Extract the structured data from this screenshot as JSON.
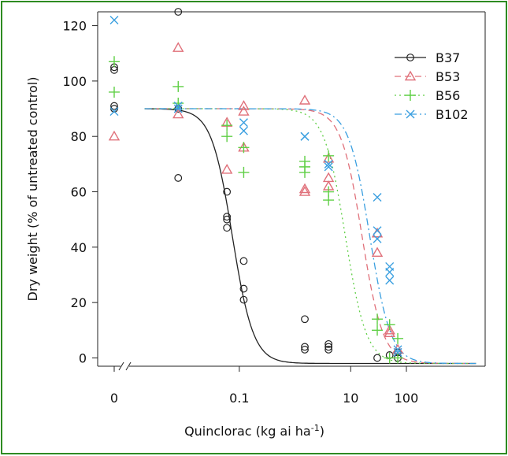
{
  "chart_data": {
    "type": "scatter",
    "xlabel": "Quinclorac (kg ai ha",
    "xlabel_sup": "-1",
    "xlabel_end": ")",
    "ylabel": "Dry weight (% of untreated control)",
    "xscale": "log",
    "x_ticks": [
      {
        "label": "0",
        "value": 0
      },
      {
        "label": "0.1",
        "value": 0.1
      },
      {
        "label": "10",
        "value": 10
      },
      {
        "label": "100",
        "value": 100
      }
    ],
    "xlim": [
      0.0012,
      2000
    ],
    "ylim": [
      -3,
      125
    ],
    "y_ticks": [
      0,
      20,
      40,
      60,
      80,
      100,
      120
    ],
    "axis_break": true,
    "legend_position": "top-right",
    "series": [
      {
        "name": "B37",
        "marker": "circle",
        "line": "solid",
        "color": "#222222",
        "curve": {
          "upper": 90,
          "lower": -2,
          "ed50": 0.075,
          "slope": 2.3
        },
        "points": [
          [
            0,
            104
          ],
          [
            0,
            105
          ],
          [
            0,
            90
          ],
          [
            0,
            91
          ],
          [
            0.008,
            125
          ],
          [
            0.008,
            65
          ],
          [
            0.008,
            90
          ],
          [
            0.06,
            60
          ],
          [
            0.06,
            50
          ],
          [
            0.06,
            51
          ],
          [
            0.06,
            47
          ],
          [
            0.12,
            35
          ],
          [
            0.12,
            25
          ],
          [
            0.12,
            21
          ],
          [
            1.5,
            14
          ],
          [
            1.5,
            4
          ],
          [
            1.5,
            3
          ],
          [
            4,
            4
          ],
          [
            4,
            5
          ],
          [
            4,
            3
          ],
          [
            30,
            0
          ],
          [
            50,
            1
          ],
          [
            70,
            0
          ],
          [
            70,
            2
          ]
        ]
      },
      {
        "name": "B53",
        "marker": "triangle",
        "line": "dashed",
        "color": "#e0707a",
        "curve": {
          "upper": 90,
          "lower": -2,
          "ed50": 16,
          "slope": 2.3
        },
        "points": [
          [
            0,
            80
          ],
          [
            0.008,
            112
          ],
          [
            0.008,
            88
          ],
          [
            0.06,
            85
          ],
          [
            0.06,
            68
          ],
          [
            0.12,
            91
          ],
          [
            0.12,
            89
          ],
          [
            0.12,
            76
          ],
          [
            1.5,
            93
          ],
          [
            1.5,
            60
          ],
          [
            1.5,
            61
          ],
          [
            4,
            72
          ],
          [
            4,
            65
          ],
          [
            4,
            62
          ],
          [
            30,
            45
          ],
          [
            30,
            38
          ],
          [
            50,
            10
          ],
          [
            50,
            9
          ],
          [
            70,
            3
          ]
        ]
      },
      {
        "name": "B56",
        "marker": "plus",
        "line": "dotted",
        "color": "#5fcf45",
        "curve": {
          "upper": 90,
          "lower": -2,
          "ed50": 8,
          "slope": 2.3
        },
        "points": [
          [
            0,
            107
          ],
          [
            0,
            96
          ],
          [
            0.008,
            98
          ],
          [
            0.008,
            92
          ],
          [
            0.06,
            80
          ],
          [
            0.06,
            84
          ],
          [
            0.12,
            76
          ],
          [
            0.12,
            67
          ],
          [
            1.5,
            71
          ],
          [
            1.5,
            69
          ],
          [
            1.5,
            67
          ],
          [
            4,
            73
          ],
          [
            4,
            60
          ],
          [
            4,
            57
          ],
          [
            30,
            14
          ],
          [
            30,
            10
          ],
          [
            50,
            12
          ],
          [
            50,
            0
          ],
          [
            70,
            7
          ],
          [
            70,
            0
          ]
        ]
      },
      {
        "name": "B102",
        "marker": "x",
        "line": "dotdash",
        "color": "#3a9fe0",
        "curve": {
          "upper": 90,
          "lower": -2,
          "ed50": 22,
          "slope": 2.3
        },
        "points": [
          [
            0,
            122
          ],
          [
            0,
            89
          ],
          [
            0.008,
            91
          ],
          [
            0.008,
            90
          ],
          [
            0.12,
            85
          ],
          [
            0.12,
            82
          ],
          [
            1.5,
            80
          ],
          [
            1.5,
            80
          ],
          [
            4,
            70
          ],
          [
            4,
            69
          ],
          [
            30,
            58
          ],
          [
            30,
            46
          ],
          [
            30,
            43
          ],
          [
            50,
            33
          ],
          [
            50,
            31
          ],
          [
            50,
            28
          ],
          [
            70,
            2
          ],
          [
            70,
            3
          ]
        ]
      }
    ]
  }
}
